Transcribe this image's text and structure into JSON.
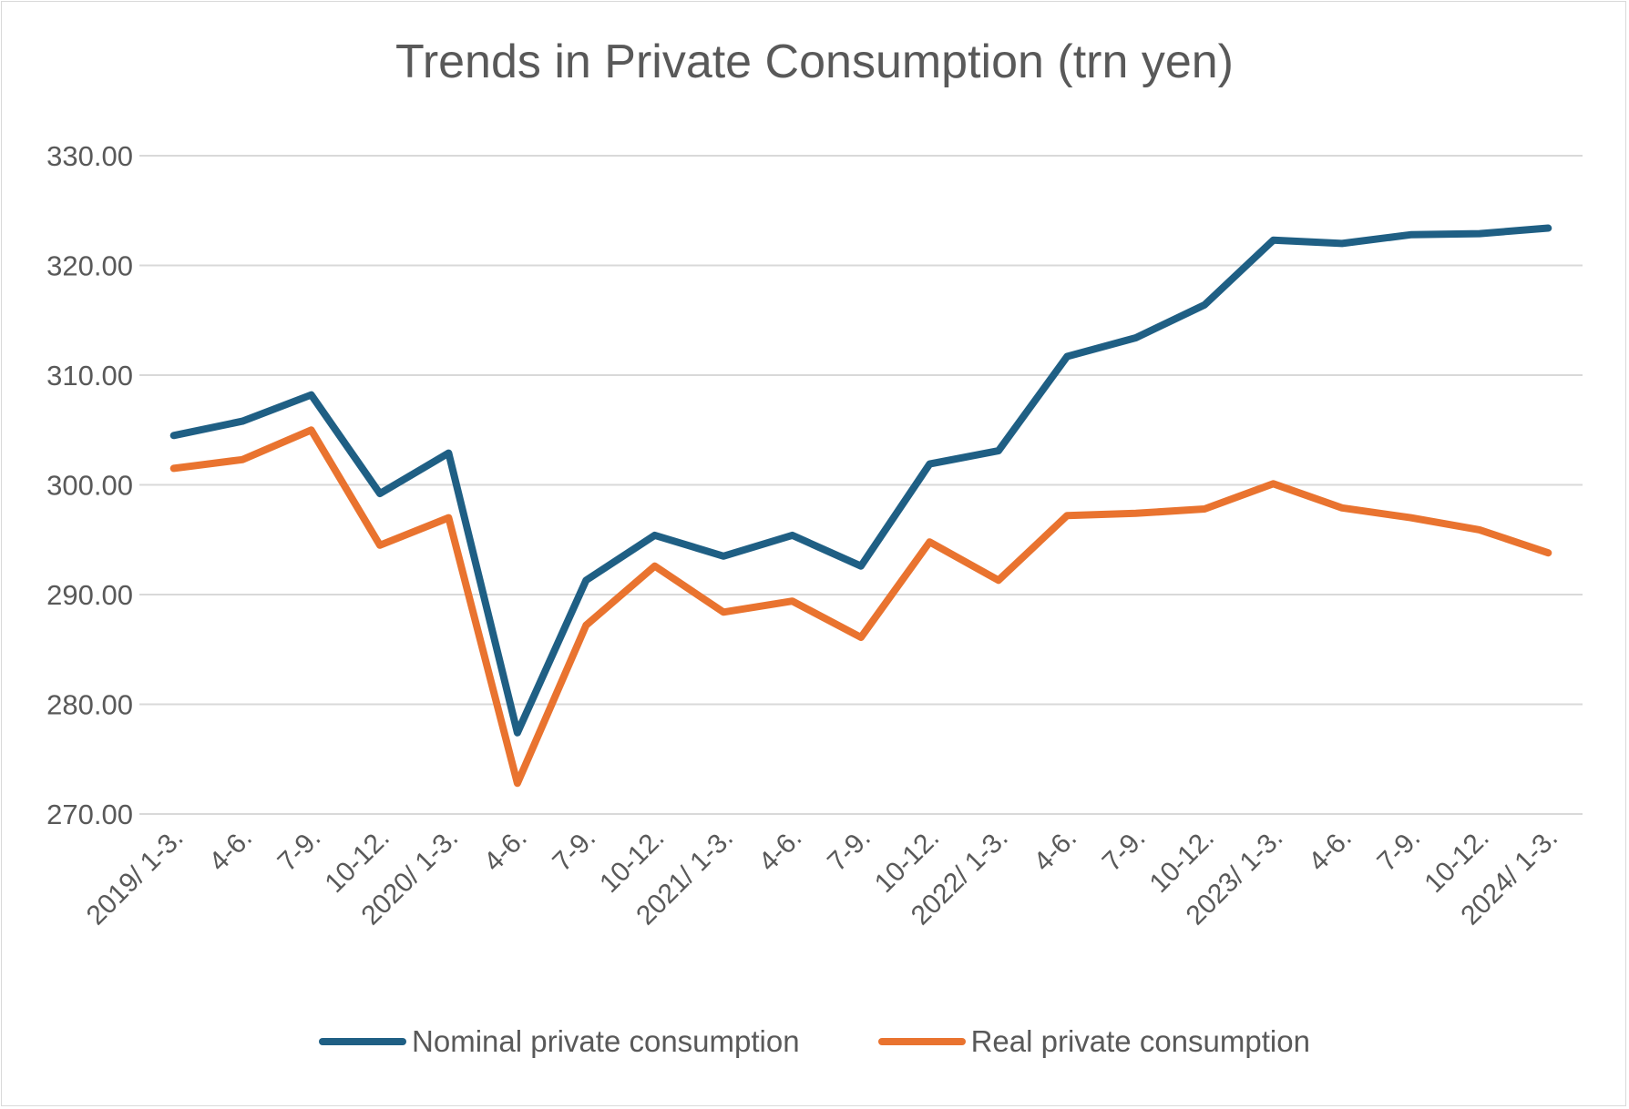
{
  "chart_data": {
    "type": "line",
    "title": "Trends in Private Consumption (trn yen)",
    "xlabel": "",
    "ylabel": "",
    "categories": [
      "2019/ 1-3.",
      "4-6.",
      "7-9.",
      "10-12.",
      "2020/ 1-3.",
      "4-6.",
      "7-9.",
      "10-12.",
      "2021/ 1-3.",
      "4-6.",
      "7-9.",
      "10-12.",
      "2022/ 1-3.",
      "4-6.",
      "7-9.",
      "10-12.",
      "2023/ 1-3.",
      "4-6.",
      "7-9.",
      "10-12.",
      "2024/ 1-3."
    ],
    "y_ticks": [
      "270.00",
      "280.00",
      "290.00",
      "300.00",
      "310.00",
      "320.00",
      "330.00"
    ],
    "ylim": [
      270,
      330
    ],
    "grid": true,
    "legend_position": "bottom",
    "series": [
      {
        "name": "Nominal private consumption",
        "color": "#1f5f84",
        "values": [
          304.5,
          305.8,
          308.2,
          299.2,
          302.9,
          277.4,
          291.3,
          295.4,
          293.5,
          295.4,
          292.6,
          301.9,
          303.1,
          311.7,
          313.4,
          316.4,
          322.3,
          322.0,
          322.8,
          322.9,
          323.4
        ]
      },
      {
        "name": "Real private consumption",
        "color": "#e9732f",
        "values": [
          301.5,
          302.3,
          305.0,
          294.5,
          297.0,
          272.8,
          287.2,
          292.6,
          288.4,
          289.4,
          286.1,
          294.8,
          291.3,
          297.2,
          297.4,
          297.8,
          300.1,
          297.9,
          297.0,
          295.9,
          293.8
        ]
      }
    ]
  }
}
